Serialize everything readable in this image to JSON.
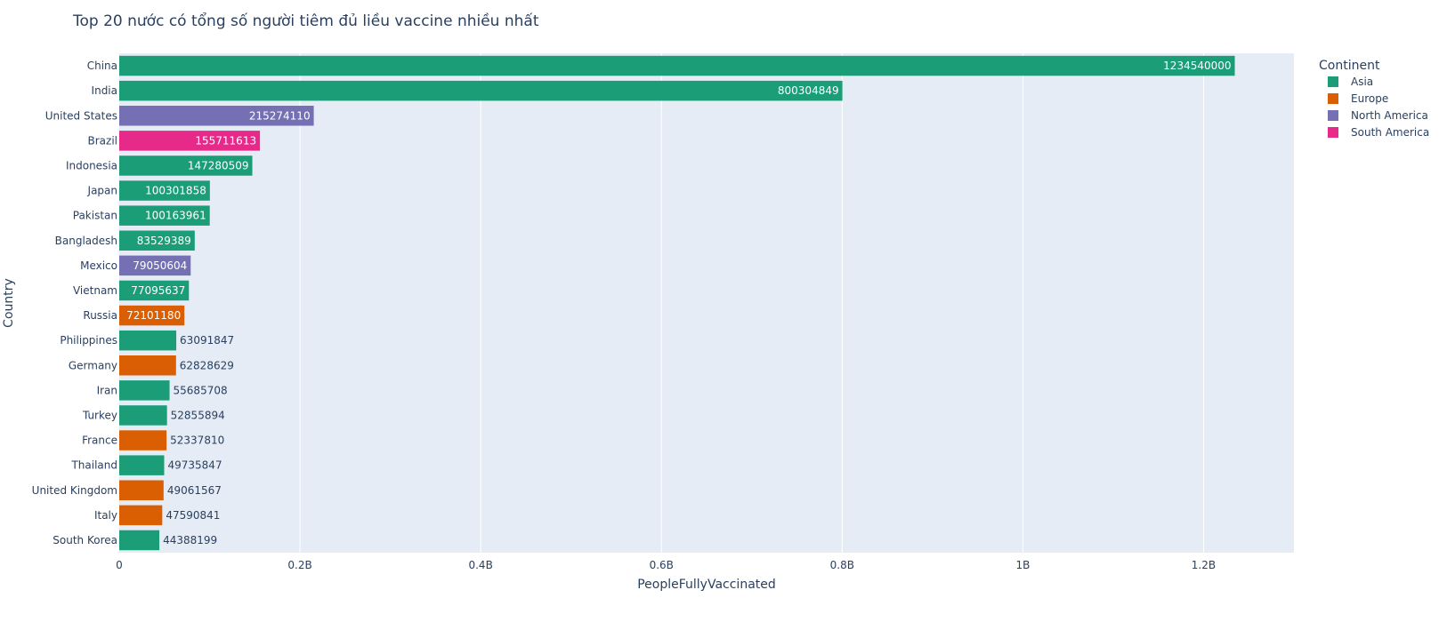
{
  "chart_data": {
    "type": "bar",
    "orientation": "horizontal",
    "title": "Top 20 nước có tổng số người tiêm đủ liều vaccine nhiều nhất",
    "xlabel": "PeopleFullyVaccinated",
    "ylabel": "Country",
    "xlim": [
      0,
      1300000000
    ],
    "x_ticks": [
      {
        "value": 0,
        "label": "0"
      },
      {
        "value": 200000000,
        "label": "0.2B"
      },
      {
        "value": 400000000,
        "label": "0.4B"
      },
      {
        "value": 600000000,
        "label": "0.6B"
      },
      {
        "value": 800000000,
        "label": "0.8B"
      },
      {
        "value": 1000000000,
        "label": "1B"
      },
      {
        "value": 1200000000,
        "label": "1.2B"
      }
    ],
    "grid": true,
    "legend": {
      "title": "Continent",
      "placement": "top-right",
      "entries": [
        {
          "name": "Asia",
          "color": "#1b9e77"
        },
        {
          "name": "Europe",
          "color": "#d95f02"
        },
        {
          "name": "North America",
          "color": "#7570b3"
        },
        {
          "name": "South America",
          "color": "#e7298a"
        }
      ]
    },
    "bars": [
      {
        "country": "China",
        "value": 1234540000,
        "label": "1234540000",
        "continent": "Asia"
      },
      {
        "country": "India",
        "value": 800304849,
        "label": "800304849",
        "continent": "Asia"
      },
      {
        "country": "United States",
        "value": 215274110,
        "label": "215274110",
        "continent": "North America"
      },
      {
        "country": "Brazil",
        "value": 155711613,
        "label": "155711613",
        "continent": "South America"
      },
      {
        "country": "Indonesia",
        "value": 147280509,
        "label": "147280509",
        "continent": "Asia"
      },
      {
        "country": "Japan",
        "value": 100301858,
        "label": "100301858",
        "continent": "Asia"
      },
      {
        "country": "Pakistan",
        "value": 100163961,
        "label": "100163961",
        "continent": "Asia"
      },
      {
        "country": "Bangladesh",
        "value": 83529389,
        "label": "83529389",
        "continent": "Asia"
      },
      {
        "country": "Mexico",
        "value": 79050604,
        "label": "79050604",
        "continent": "North America"
      },
      {
        "country": "Vietnam",
        "value": 77095637,
        "label": "77095637",
        "continent": "Asia"
      },
      {
        "country": "Russia",
        "value": 72101180,
        "label": "72101180",
        "continent": "Europe"
      },
      {
        "country": "Philippines",
        "value": 63091847,
        "label": "63091847",
        "continent": "Asia"
      },
      {
        "country": "Germany",
        "value": 62828629,
        "label": "62828629",
        "continent": "Europe"
      },
      {
        "country": "Iran",
        "value": 55685708,
        "label": "55685708",
        "continent": "Asia"
      },
      {
        "country": "Turkey",
        "value": 52855894,
        "label": "52855894",
        "continent": "Asia"
      },
      {
        "country": "France",
        "value": 52337810,
        "label": "52337810",
        "continent": "Europe"
      },
      {
        "country": "Thailand",
        "value": 49735847,
        "label": "49735847",
        "continent": "Asia"
      },
      {
        "country": "United Kingdom",
        "value": 49061567,
        "label": "49061567",
        "continent": "Europe"
      },
      {
        "country": "Italy",
        "value": 47590841,
        "label": "47590841",
        "continent": "Europe"
      },
      {
        "country": "South Korea",
        "value": 44388199,
        "label": "44388199",
        "continent": "Asia"
      }
    ]
  }
}
